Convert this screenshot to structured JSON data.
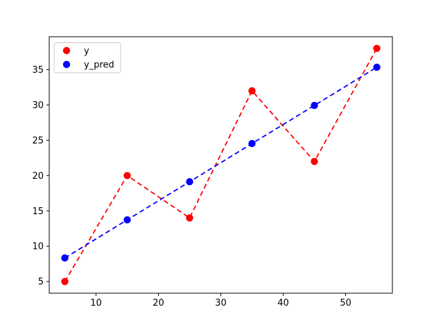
{
  "figure": {
    "background": "#ffffff"
  },
  "chart_data": {
    "type": "line",
    "title": "",
    "xlabel": "",
    "ylabel": "",
    "x": [
      5,
      15,
      25,
      35,
      45,
      55
    ],
    "series": [
      {
        "name": "y",
        "values": [
          5,
          20,
          14,
          32,
          22,
          38
        ],
        "color": "#ff0000",
        "linestyle": "dashed",
        "marker": "circle"
      },
      {
        "name": "y_pred",
        "values": [
          8.33,
          13.73,
          19.13,
          24.53,
          29.93,
          35.33
        ],
        "color": "#0000ff",
        "linestyle": "dashed",
        "marker": "circle"
      }
    ],
    "xlim": [
      2.5,
      57.5
    ],
    "ylim": [
      3.35,
      39.65
    ],
    "xticks": [
      10,
      20,
      30,
      40,
      50
    ],
    "yticks": [
      5,
      10,
      15,
      20,
      25,
      30,
      35
    ],
    "grid": false,
    "legend": {
      "position": "upper-left",
      "entries": [
        "y",
        "y_pred"
      ]
    }
  },
  "colors": {
    "frame": "#000000",
    "tick_label": "#000000",
    "legend_border": "#cccccc",
    "legend_bg": "#ffffff"
  }
}
